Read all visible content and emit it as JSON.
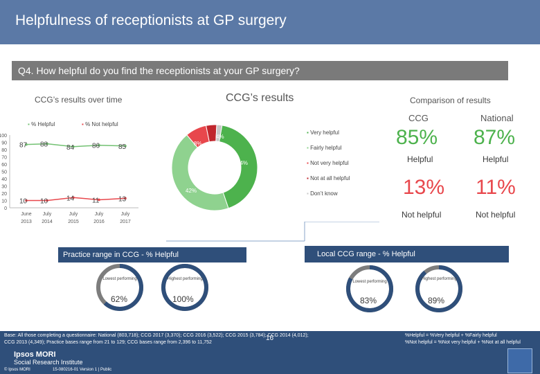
{
  "header": {
    "title": "Helpfulness of receptionists at GP surgery"
  },
  "question": "Q4. How helpful do you find the receptionists at your GP surgery?",
  "over_time": {
    "title": "CCG’s results over time",
    "legend": [
      "% Helpful",
      "% Not helpful"
    ],
    "y_ticks": [
      "100",
      "90",
      "80",
      "70",
      "60",
      "50",
      "40",
      "30",
      "20",
      "10",
      "0"
    ],
    "x_labels": [
      [
        "June",
        "2013"
      ],
      [
        "July",
        "2014"
      ],
      [
        "July",
        "2015"
      ],
      [
        "July",
        "2016"
      ],
      [
        "July",
        "2017"
      ]
    ],
    "helpful_labels": [
      "87",
      "88",
      "84",
      "86",
      "85"
    ],
    "not_helpful_labels": [
      "10",
      "10",
      "14",
      "11",
      "13"
    ]
  },
  "donut": {
    "title": "CCG’s results",
    "legend": [
      "Very helpful",
      "Fairly helpful",
      "Not very helpful",
      "Not at all helpful",
      "Don’t know"
    ],
    "labels": [
      "42%",
      "44%",
      "8%",
      "4%"
    ]
  },
  "comparison": {
    "title": "Comparison of results",
    "ccg_label": "CCG",
    "national_label": "National",
    "ccg_helpful": "85%",
    "national_helpful": "87%",
    "helpful_label": "Helpful",
    "ccg_not_helpful": "13%",
    "national_not_helpful": "11%",
    "not_helpful_label": "Not helpful"
  },
  "practice_range": {
    "title": "Practice range in CCG - % Helpful",
    "lowest_label": "Lowest performing",
    "highest_label": "Highest performing",
    "lowest_value": "62%",
    "highest_value": "100%"
  },
  "local_range": {
    "title": "Local CCG range - % Helpful",
    "lowest_label": "Lowest performing",
    "highest_label": "Highest performing",
    "lowest_value": "83%",
    "highest_value": "89%"
  },
  "footer": {
    "base_line1": "Base: All those completing a questionnaire: National (803,718); CCG 2017 (3,370); CCG 2016 (3,522); CCG 2015 (3,784); CCG 2014 (4,012);",
    "base_line2": "CCG 2013 (4,349); Practice bases range from 21 to 129; CCG bases range from 2,396 to 11,752",
    "def_line1": "%Helpful = %Very helpful + %Fairly helpful",
    "def_line2": "%Not helpful = %Not very helpful + %Not at all helpful",
    "logo_line1": "Ipsos MORI",
    "logo_line2": "Social Research Institute",
    "page_number": "16",
    "copyright": "© Ipsos MORI",
    "doc_ref": "15-080216-01 Version 1 | Public"
  },
  "colors": {
    "header": "#5b79a6",
    "helpful": "#72c172",
    "not_helpful": "#e8474c",
    "very_helpful": "#4db24d",
    "fairly_helpful": "#8fd28f",
    "dont_know": "#c8c8c8",
    "range_track": "#7d7d7d",
    "range_fill": "#2f4f7a"
  },
  "chart_data": [
    {
      "type": "line",
      "title": "CCG’s results over time",
      "x": [
        "June 2013",
        "July 2014",
        "July 2015",
        "July 2016",
        "July 2017"
      ],
      "series": [
        {
          "name": "% Helpful",
          "values": [
            87,
            88,
            84,
            86,
            85
          ]
        },
        {
          "name": "% Not helpful",
          "values": [
            10,
            10,
            14,
            11,
            13
          ]
        }
      ],
      "ylim": [
        0,
        100
      ],
      "legend": "top"
    },
    {
      "type": "pie",
      "title": "CCG’s results",
      "categories": [
        "Very helpful",
        "Fairly helpful",
        "Not very helpful",
        "Not at all helpful",
        "Don’t know"
      ],
      "values": [
        42,
        44,
        8,
        4,
        2
      ],
      "legend": "right"
    }
  ]
}
